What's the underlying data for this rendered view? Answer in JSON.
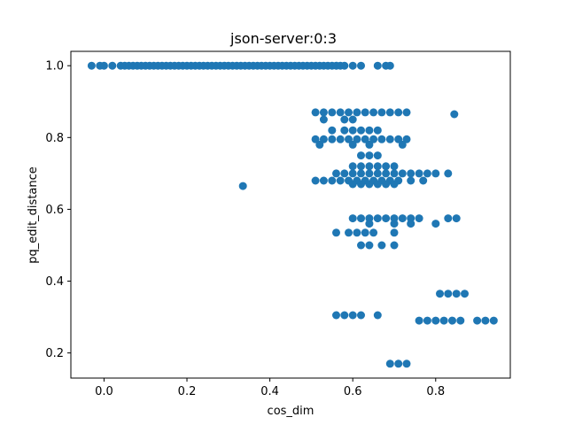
{
  "chart_data": {
    "type": "scatter",
    "title": "json-server:0:3",
    "xlabel": "cos_dim",
    "ylabel": "pq_edit_distance",
    "xlim": [
      -0.08,
      0.98
    ],
    "ylim": [
      0.13,
      1.04
    ],
    "xticks": [
      0.0,
      0.2,
      0.4,
      0.6,
      0.8
    ],
    "xtick_labels": [
      "0.0",
      "0.2",
      "0.4",
      "0.6",
      "0.8"
    ],
    "yticks": [
      0.2,
      0.4,
      0.6,
      0.8,
      1.0
    ],
    "ytick_labels": [
      "0.2",
      "0.4",
      "0.6",
      "0.8",
      "1.0"
    ],
    "grid": false,
    "marker_color": "#1f77b4",
    "series": [
      {
        "points": [
          [
            -0.03,
            1.0
          ],
          [
            -0.01,
            1.0
          ],
          [
            0.0,
            1.0
          ],
          [
            0.02,
            1.0
          ],
          [
            0.04,
            1.0
          ],
          [
            0.05,
            1.0
          ],
          [
            0.06,
            1.0
          ],
          [
            0.07,
            1.0
          ],
          [
            0.08,
            1.0
          ],
          [
            0.09,
            1.0
          ],
          [
            0.1,
            1.0
          ],
          [
            0.11,
            1.0
          ],
          [
            0.12,
            1.0
          ],
          [
            0.13,
            1.0
          ],
          [
            0.14,
            1.0
          ],
          [
            0.15,
            1.0
          ],
          [
            0.16,
            1.0
          ],
          [
            0.17,
            1.0
          ],
          [
            0.18,
            1.0
          ],
          [
            0.19,
            1.0
          ],
          [
            0.2,
            1.0
          ],
          [
            0.21,
            1.0
          ],
          [
            0.22,
            1.0
          ],
          [
            0.23,
            1.0
          ],
          [
            0.24,
            1.0
          ],
          [
            0.25,
            1.0
          ],
          [
            0.26,
            1.0
          ],
          [
            0.27,
            1.0
          ],
          [
            0.28,
            1.0
          ],
          [
            0.29,
            1.0
          ],
          [
            0.3,
            1.0
          ],
          [
            0.31,
            1.0
          ],
          [
            0.32,
            1.0
          ],
          [
            0.33,
            1.0
          ],
          [
            0.34,
            1.0
          ],
          [
            0.35,
            1.0
          ],
          [
            0.36,
            1.0
          ],
          [
            0.37,
            1.0
          ],
          [
            0.38,
            1.0
          ],
          [
            0.39,
            1.0
          ],
          [
            0.4,
            1.0
          ],
          [
            0.41,
            1.0
          ],
          [
            0.42,
            1.0
          ],
          [
            0.43,
            1.0
          ],
          [
            0.44,
            1.0
          ],
          [
            0.45,
            1.0
          ],
          [
            0.46,
            1.0
          ],
          [
            0.47,
            1.0
          ],
          [
            0.48,
            1.0
          ],
          [
            0.49,
            1.0
          ],
          [
            0.5,
            1.0
          ],
          [
            0.51,
            1.0
          ],
          [
            0.52,
            1.0
          ],
          [
            0.53,
            1.0
          ],
          [
            0.54,
            1.0
          ],
          [
            0.55,
            1.0
          ],
          [
            0.56,
            1.0
          ],
          [
            0.57,
            1.0
          ],
          [
            0.58,
            1.0
          ],
          [
            0.6,
            1.0
          ],
          [
            0.62,
            1.0
          ],
          [
            0.66,
            1.0
          ],
          [
            0.68,
            1.0
          ],
          [
            0.69,
            1.0
          ],
          [
            0.335,
            0.665
          ],
          [
            0.51,
            0.87
          ],
          [
            0.53,
            0.87
          ],
          [
            0.55,
            0.87
          ],
          [
            0.57,
            0.87
          ],
          [
            0.59,
            0.87
          ],
          [
            0.61,
            0.87
          ],
          [
            0.63,
            0.87
          ],
          [
            0.65,
            0.87
          ],
          [
            0.67,
            0.87
          ],
          [
            0.69,
            0.87
          ],
          [
            0.71,
            0.87
          ],
          [
            0.73,
            0.87
          ],
          [
            0.845,
            0.865
          ],
          [
            0.53,
            0.85
          ],
          [
            0.58,
            0.85
          ],
          [
            0.6,
            0.85
          ],
          [
            0.55,
            0.82
          ],
          [
            0.58,
            0.82
          ],
          [
            0.6,
            0.82
          ],
          [
            0.62,
            0.82
          ],
          [
            0.64,
            0.82
          ],
          [
            0.66,
            0.82
          ],
          [
            0.51,
            0.795
          ],
          [
            0.53,
            0.795
          ],
          [
            0.55,
            0.795
          ],
          [
            0.57,
            0.795
          ],
          [
            0.59,
            0.795
          ],
          [
            0.61,
            0.795
          ],
          [
            0.63,
            0.795
          ],
          [
            0.65,
            0.795
          ],
          [
            0.67,
            0.795
          ],
          [
            0.69,
            0.795
          ],
          [
            0.71,
            0.795
          ],
          [
            0.73,
            0.795
          ],
          [
            0.52,
            0.78
          ],
          [
            0.6,
            0.78
          ],
          [
            0.64,
            0.78
          ],
          [
            0.72,
            0.78
          ],
          [
            0.62,
            0.75
          ],
          [
            0.64,
            0.75
          ],
          [
            0.66,
            0.75
          ],
          [
            0.6,
            0.72
          ],
          [
            0.62,
            0.72
          ],
          [
            0.64,
            0.72
          ],
          [
            0.66,
            0.72
          ],
          [
            0.68,
            0.72
          ],
          [
            0.7,
            0.72
          ],
          [
            0.51,
            0.68
          ],
          [
            0.53,
            0.68
          ],
          [
            0.55,
            0.68
          ],
          [
            0.57,
            0.68
          ],
          [
            0.59,
            0.68
          ],
          [
            0.61,
            0.68
          ],
          [
            0.63,
            0.68
          ],
          [
            0.65,
            0.68
          ],
          [
            0.67,
            0.68
          ],
          [
            0.69,
            0.68
          ],
          [
            0.71,
            0.68
          ],
          [
            0.74,
            0.68
          ],
          [
            0.77,
            0.68
          ],
          [
            0.56,
            0.7
          ],
          [
            0.58,
            0.7
          ],
          [
            0.6,
            0.7
          ],
          [
            0.62,
            0.7
          ],
          [
            0.64,
            0.7
          ],
          [
            0.66,
            0.7
          ],
          [
            0.68,
            0.7
          ],
          [
            0.7,
            0.7
          ],
          [
            0.72,
            0.7
          ],
          [
            0.74,
            0.7
          ],
          [
            0.76,
            0.7
          ],
          [
            0.78,
            0.7
          ],
          [
            0.8,
            0.7
          ],
          [
            0.83,
            0.7
          ],
          [
            0.6,
            0.67
          ],
          [
            0.62,
            0.67
          ],
          [
            0.64,
            0.67
          ],
          [
            0.66,
            0.67
          ],
          [
            0.68,
            0.67
          ],
          [
            0.7,
            0.67
          ],
          [
            0.6,
            0.575
          ],
          [
            0.62,
            0.575
          ],
          [
            0.64,
            0.575
          ],
          [
            0.66,
            0.575
          ],
          [
            0.68,
            0.575
          ],
          [
            0.7,
            0.575
          ],
          [
            0.72,
            0.575
          ],
          [
            0.74,
            0.575
          ],
          [
            0.76,
            0.575
          ],
          [
            0.83,
            0.575
          ],
          [
            0.85,
            0.575
          ],
          [
            0.64,
            0.56
          ],
          [
            0.7,
            0.56
          ],
          [
            0.74,
            0.56
          ],
          [
            0.8,
            0.56
          ],
          [
            0.56,
            0.535
          ],
          [
            0.59,
            0.535
          ],
          [
            0.61,
            0.535
          ],
          [
            0.63,
            0.535
          ],
          [
            0.65,
            0.535
          ],
          [
            0.7,
            0.535
          ],
          [
            0.62,
            0.5
          ],
          [
            0.64,
            0.5
          ],
          [
            0.67,
            0.5
          ],
          [
            0.7,
            0.5
          ],
          [
            0.81,
            0.365
          ],
          [
            0.83,
            0.365
          ],
          [
            0.85,
            0.365
          ],
          [
            0.87,
            0.365
          ],
          [
            0.56,
            0.305
          ],
          [
            0.58,
            0.305
          ],
          [
            0.6,
            0.305
          ],
          [
            0.62,
            0.305
          ],
          [
            0.66,
            0.305
          ],
          [
            0.76,
            0.29
          ],
          [
            0.78,
            0.29
          ],
          [
            0.8,
            0.29
          ],
          [
            0.82,
            0.29
          ],
          [
            0.84,
            0.29
          ],
          [
            0.86,
            0.29
          ],
          [
            0.9,
            0.29
          ],
          [
            0.92,
            0.29
          ],
          [
            0.94,
            0.29
          ],
          [
            0.69,
            0.17
          ],
          [
            0.71,
            0.17
          ],
          [
            0.73,
            0.17
          ]
        ]
      }
    ]
  }
}
